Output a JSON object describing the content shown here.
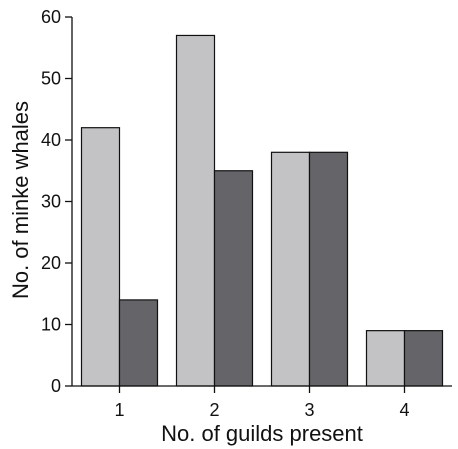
{
  "chart_data": {
    "type": "bar",
    "title": "",
    "xlabel": "No. of guilds present",
    "ylabel": "No. of minke whales",
    "categories": [
      "1",
      "2",
      "3",
      "4"
    ],
    "ylim": [
      0,
      60
    ],
    "yticks": [
      0,
      10,
      20,
      30,
      40,
      50,
      60
    ],
    "series": [
      {
        "values": [
          42,
          57,
          38,
          9
        ],
        "color": "#c3c3c5"
      },
      {
        "values": [
          14,
          35,
          38,
          9
        ],
        "color": "#646469"
      }
    ],
    "grid": false,
    "legend": "none"
  }
}
